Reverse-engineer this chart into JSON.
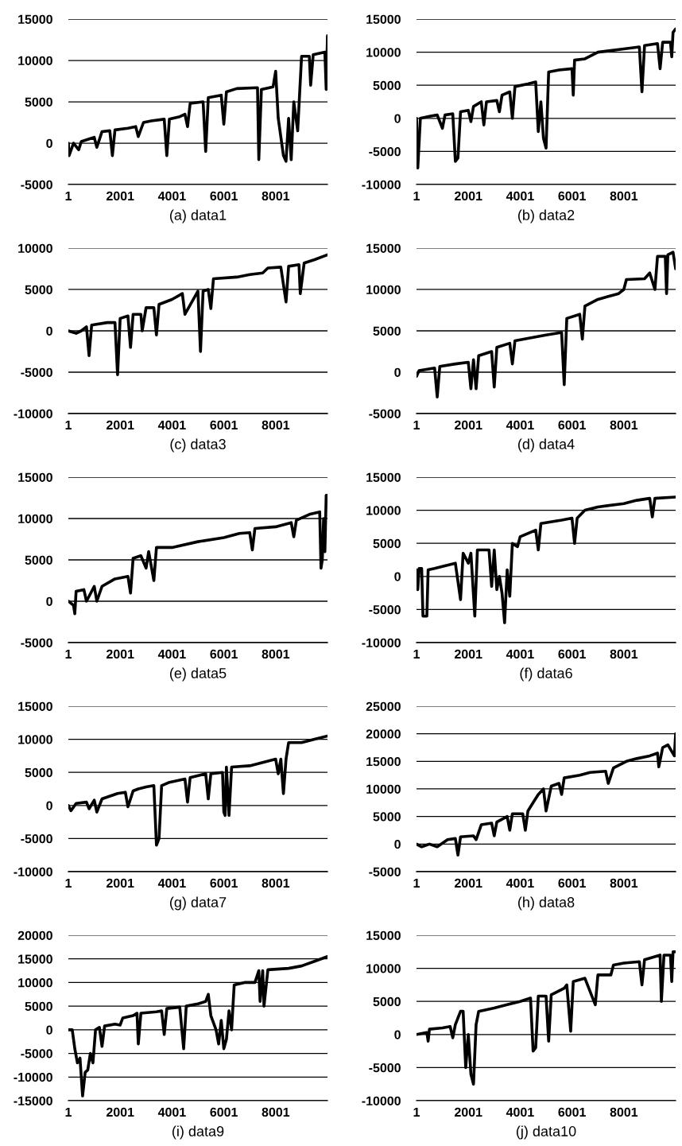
{
  "chart_data": [
    {
      "type": "line",
      "title": "(a) data1",
      "color": "#000000",
      "grid": "y",
      "xlim": [
        1,
        10000
      ],
      "xticks": [
        1,
        2001,
        4001,
        6001,
        8001
      ],
      "ylim": [
        -5000,
        15000
      ],
      "yticks": [
        -5000,
        0,
        5000,
        10000,
        15000
      ],
      "x": [
        1,
        30,
        200,
        400,
        500,
        800,
        1000,
        1100,
        1300,
        1600,
        1700,
        1800,
        2300,
        2600,
        2700,
        2900,
        3200,
        3700,
        3800,
        3900,
        4300,
        4500,
        4600,
        4700,
        5200,
        5300,
        5400,
        5900,
        6000,
        6100,
        6500,
        7300,
        7350,
        7450,
        7900,
        8000,
        8100,
        8300,
        8400,
        8500,
        8600,
        8700,
        8850,
        9000,
        9300,
        9350,
        9450,
        9900,
        9950,
        10000
      ],
      "values": [
        0,
        -1500,
        0,
        -800,
        200,
        500,
        700,
        -500,
        1400,
        1500,
        -1500,
        1600,
        1800,
        2000,
        800,
        2500,
        2700,
        2900,
        -1500,
        2900,
        3200,
        3500,
        2000,
        4800,
        5000,
        -1000,
        5500,
        5800,
        2300,
        6200,
        6600,
        6700,
        -2000,
        6500,
        6800,
        8700,
        3000,
        -1500,
        -2200,
        3000,
        -2000,
        5000,
        1500,
        10500,
        10500,
        7000,
        10700,
        11000,
        6500,
        13000
      ]
    },
    {
      "type": "line",
      "title": "(b) data2",
      "color": "#000000",
      "grid": "y",
      "xlim": [
        1,
        10000
      ],
      "xticks": [
        1,
        2001,
        4001,
        6001,
        8001
      ],
      "ylim": [
        -10000,
        15000
      ],
      "yticks": [
        -10000,
        -5000,
        0,
        5000,
        10000,
        15000
      ],
      "x": [
        1,
        50,
        150,
        500,
        800,
        1000,
        1100,
        1400,
        1500,
        1600,
        1700,
        2000,
        2100,
        2200,
        2500,
        2600,
        2700,
        3100,
        3200,
        3300,
        3600,
        3700,
        3800,
        4300,
        4600,
        4700,
        4800,
        4900,
        5000,
        5100,
        5500,
        6000,
        6050,
        6100,
        6500,
        7000,
        8000,
        8600,
        8700,
        8800,
        9300,
        9400,
        9500,
        9800,
        9850,
        9900,
        10000
      ],
      "values": [
        0,
        -7500,
        0,
        300,
        500,
        -1500,
        500,
        700,
        -6500,
        -6000,
        1000,
        1200,
        -500,
        1800,
        2500,
        -1000,
        2500,
        2700,
        1000,
        3500,
        4000,
        0,
        4800,
        5200,
        5500,
        -2000,
        2500,
        -3000,
        -4500,
        7000,
        7300,
        7500,
        3500,
        8800,
        9000,
        10000,
        10500,
        10800,
        4000,
        11000,
        11300,
        7500,
        11500,
        11500,
        9300,
        13000,
        13500
      ]
    },
    {
      "type": "line",
      "title": "(c) data3",
      "color": "#000000",
      "grid": "y",
      "xlim": [
        1,
        10000
      ],
      "xticks": [
        1,
        2001,
        4001,
        6001,
        8001
      ],
      "ylim": [
        -10000,
        10000
      ],
      "yticks": [
        -10000,
        -5000,
        0,
        5000,
        10000
      ],
      "x": [
        1,
        300,
        500,
        700,
        800,
        900,
        1500,
        1800,
        1900,
        2000,
        2300,
        2400,
        2500,
        2800,
        2850,
        3000,
        3300,
        3400,
        3500,
        4000,
        4400,
        4500,
        5000,
        5100,
        5200,
        5400,
        5500,
        5600,
        6500,
        7000,
        7500,
        7700,
        8200,
        8400,
        8500,
        8900,
        8950,
        9100,
        9500,
        10000
      ],
      "values": [
        0,
        -300,
        0,
        500,
        -3000,
        700,
        1000,
        1000,
        -5300,
        1500,
        1800,
        -2000,
        2000,
        2000,
        0,
        2800,
        2800,
        -500,
        3200,
        3800,
        4500,
        2000,
        4800,
        -2500,
        4800,
        5000,
        2700,
        6300,
        6500,
        6800,
        7000,
        7600,
        7700,
        3500,
        7800,
        8000,
        4500,
        8200,
        8600,
        9200
      ]
    },
    {
      "type": "line",
      "title": "(d) data4",
      "color": "#000000",
      "grid": "y",
      "xlim": [
        1,
        10000
      ],
      "xticks": [
        1,
        2001,
        4001,
        6001,
        8001
      ],
      "ylim": [
        -5000,
        15000
      ],
      "yticks": [
        -5000,
        0,
        5000,
        10000,
        15000
      ],
      "x": [
        1,
        100,
        700,
        800,
        900,
        1500,
        2000,
        2100,
        2200,
        2300,
        2400,
        2900,
        3000,
        3100,
        3600,
        3700,
        3800,
        4500,
        5000,
        5600,
        5700,
        5800,
        6300,
        6400,
        6500,
        7000,
        7800,
        8000,
        8100,
        8800,
        9000,
        9200,
        9300,
        9600,
        9650,
        9700,
        9900,
        10000
      ],
      "values": [
        -500,
        200,
        500,
        -3000,
        700,
        1000,
        1200,
        -2000,
        1500,
        -2000,
        2000,
        2500,
        -1800,
        3000,
        3500,
        1000,
        3800,
        4200,
        4500,
        4800,
        -1500,
        6500,
        7000,
        4000,
        8000,
        8800,
        9500,
        10000,
        11200,
        11300,
        12000,
        10000,
        14000,
        14000,
        9500,
        14200,
        14500,
        12500
      ]
    },
    {
      "type": "line",
      "title": "(e) data5",
      "color": "#000000",
      "grid": "y",
      "xlim": [
        1,
        10000
      ],
      "xticks": [
        1,
        2001,
        4001,
        6001,
        8001
      ],
      "ylim": [
        -5000,
        15000
      ],
      "yticks": [
        -5000,
        0,
        5000,
        10000,
        15000
      ],
      "x": [
        1,
        200,
        250,
        300,
        600,
        700,
        1000,
        1100,
        1300,
        1800,
        2300,
        2400,
        2500,
        2800,
        3000,
        3100,
        3300,
        3400,
        4000,
        5000,
        6000,
        6600,
        7000,
        7100,
        7200,
        8000,
        8600,
        8700,
        8800,
        9300,
        9700,
        9750,
        9800,
        9850,
        9900,
        9950,
        10000
      ],
      "values": [
        0,
        -500,
        -1500,
        1200,
        1400,
        0,
        1800,
        0,
        1800,
        2700,
        3000,
        1000,
        5200,
        5500,
        4000,
        6000,
        2500,
        6500,
        6500,
        7200,
        7700,
        8200,
        8300,
        6200,
        8800,
        9000,
        9500,
        7800,
        9800,
        10500,
        10800,
        4000,
        5000,
        10000,
        6000,
        12800,
        12800
      ]
    },
    {
      "type": "line",
      "title": "(f) data6",
      "color": "#000000",
      "grid": "y",
      "xlim": [
        1,
        10000
      ],
      "xticks": [
        1,
        2001,
        4001,
        6001,
        8001
      ],
      "ylim": [
        -10000,
        15000
      ],
      "yticks": [
        -10000,
        -5000,
        0,
        5000,
        10000,
        15000
      ],
      "x": [
        1,
        50,
        100,
        200,
        250,
        400,
        450,
        700,
        1000,
        1500,
        1700,
        1800,
        2000,
        2100,
        2250,
        2350,
        2800,
        2900,
        3000,
        3100,
        3200,
        3300,
        3400,
        3500,
        3600,
        3700,
        3900,
        4000,
        4600,
        4700,
        4800,
        5600,
        6000,
        6100,
        6200,
        6500,
        7000,
        8000,
        8500,
        9000,
        9100,
        9200,
        10000
      ],
      "values": [
        1000,
        -2000,
        1200,
        1200,
        -6000,
        -6000,
        1000,
        1200,
        1500,
        2000,
        -3500,
        3500,
        2000,
        3500,
        -6000,
        4000,
        4000,
        -1500,
        4000,
        -2000,
        0,
        -2500,
        -7000,
        1000,
        -3000,
        5000,
        4500,
        6000,
        7000,
        4000,
        8000,
        8500,
        8800,
        5000,
        8800,
        10000,
        10500,
        11000,
        11500,
        11800,
        9000,
        11800,
        12000
      ]
    },
    {
      "type": "line",
      "title": "(g) data7",
      "color": "#000000",
      "grid": "y",
      "xlim": [
        1,
        10000
      ],
      "xticks": [
        1,
        2001,
        4001,
        6001,
        8001
      ],
      "ylim": [
        -10000,
        15000
      ],
      "yticks": [
        -10000,
        -5000,
        0,
        5000,
        10000,
        15000
      ],
      "x": [
        1,
        100,
        300,
        700,
        800,
        1000,
        1100,
        1300,
        1900,
        2200,
        2300,
        2500,
        2700,
        3000,
        3300,
        3400,
        3500,
        3600,
        3900,
        4500,
        4600,
        4700,
        5300,
        5400,
        5500,
        5950,
        6000,
        6050,
        6100,
        6200,
        6300,
        7000,
        7500,
        8000,
        8100,
        8200,
        8300,
        8400,
        8500,
        9000,
        9500,
        10000
      ],
      "values": [
        0,
        -800,
        300,
        500,
        -500,
        800,
        -1000,
        1000,
        1800,
        2000,
        -200,
        2200,
        2500,
        2800,
        3000,
        -6000,
        -5000,
        3000,
        3500,
        4000,
        500,
        4200,
        4800,
        1000,
        4800,
        5000,
        -1000,
        -1500,
        5800,
        -1500,
        5800,
        6000,
        6500,
        7000,
        4800,
        7000,
        1800,
        7000,
        9500,
        9500,
        10000,
        10500
      ]
    },
    {
      "type": "line",
      "title": "(h) data8",
      "color": "#000000",
      "grid": "y",
      "xlim": [
        1,
        10000
      ],
      "xticks": [
        1,
        2001,
        4001,
        6001,
        8001
      ],
      "ylim": [
        -5000,
        25000
      ],
      "yticks": [
        -5000,
        0,
        5000,
        10000,
        15000,
        20000,
        25000
      ],
      "x": [
        1,
        200,
        500,
        800,
        1200,
        1500,
        1600,
        1700,
        2200,
        2300,
        2500,
        2900,
        3000,
        3100,
        3500,
        3600,
        3700,
        4100,
        4200,
        4300,
        4500,
        4700,
        4900,
        5000,
        5200,
        5500,
        5600,
        5700,
        6300,
        6700,
        7300,
        7400,
        7600,
        8100,
        8500,
        9000,
        9300,
        9350,
        9500,
        9700,
        9950,
        10000
      ],
      "values": [
        0,
        -500,
        0,
        -500,
        800,
        1000,
        -2000,
        1300,
        1500,
        800,
        3500,
        3800,
        1500,
        4000,
        5000,
        2500,
        5500,
        5500,
        2500,
        6000,
        7500,
        9000,
        10000,
        6000,
        10500,
        11000,
        9000,
        12000,
        12500,
        13000,
        13200,
        11000,
        13800,
        15000,
        15500,
        16000,
        16500,
        14000,
        17500,
        18000,
        16000,
        20000
      ]
    },
    {
      "type": "line",
      "title": "(i) data9",
      "color": "#000000",
      "grid": "y",
      "xlim": [
        1,
        10000
      ],
      "xticks": [
        1,
        2001,
        4001,
        6001,
        8001
      ],
      "ylim": [
        -15000,
        20000
      ],
      "yticks": [
        -15000,
        -10000,
        -5000,
        0,
        5000,
        10000,
        15000,
        20000
      ],
      "x": [
        1,
        150,
        250,
        350,
        450,
        550,
        650,
        750,
        850,
        950,
        1050,
        1200,
        1300,
        1400,
        1800,
        2000,
        2100,
        2500,
        2650,
        2700,
        2800,
        3400,
        3600,
        3700,
        3800,
        4300,
        4450,
        4550,
        5000,
        5300,
        5400,
        5500,
        5700,
        5800,
        5900,
        6000,
        6100,
        6200,
        6300,
        6400,
        6800,
        7200,
        7350,
        7400,
        7500,
        7550,
        7700,
        8500,
        9000,
        9500,
        10000
      ],
      "values": [
        0,
        0,
        -4000,
        -7000,
        -6000,
        -14000,
        -9000,
        -8500,
        -5000,
        -7000,
        0,
        500,
        -3500,
        800,
        1200,
        1000,
        2500,
        3000,
        3500,
        -3000,
        3500,
        3800,
        4000,
        -1000,
        4500,
        4800,
        -4000,
        5000,
        5500,
        6000,
        7500,
        3000,
        0,
        -3000,
        2000,
        -4000,
        -2000,
        4000,
        0,
        9500,
        10000,
        10000,
        12500,
        6000,
        12500,
        5000,
        12700,
        13000,
        13500,
        14500,
        15500
      ]
    },
    {
      "type": "line",
      "title": "(j) data10",
      "color": "#000000",
      "grid": "y",
      "xlim": [
        1,
        10000
      ],
      "xticks": [
        1,
        2001,
        4001,
        6001,
        8001
      ],
      "ylim": [
        -10000,
        15000
      ],
      "yticks": [
        -10000,
        -5000,
        0,
        5000,
        10000,
        15000
      ],
      "x": [
        1,
        400,
        450,
        500,
        1000,
        1300,
        1400,
        1500,
        1700,
        1800,
        1900,
        2000,
        2100,
        2200,
        2300,
        2400,
        3000,
        3500,
        4000,
        4400,
        4500,
        4600,
        4700,
        5000,
        5100,
        5200,
        5700,
        5800,
        5950,
        6050,
        6500,
        6900,
        7000,
        7500,
        7600,
        8000,
        8600,
        8700,
        8800,
        9400,
        9450,
        9550,
        9800,
        9850,
        9900,
        10000
      ],
      "values": [
        0,
        300,
        -1000,
        800,
        1000,
        1200,
        -500,
        1500,
        3500,
        3500,
        -5000,
        0,
        -6000,
        -7500,
        1500,
        3500,
        4000,
        4500,
        5000,
        5500,
        -2500,
        -2000,
        5800,
        5800,
        -1000,
        6000,
        7000,
        7500,
        500,
        8000,
        8500,
        4500,
        9000,
        9000,
        10500,
        10800,
        11000,
        7500,
        11300,
        12000,
        5000,
        12000,
        12000,
        8000,
        12500,
        12500
      ]
    }
  ]
}
